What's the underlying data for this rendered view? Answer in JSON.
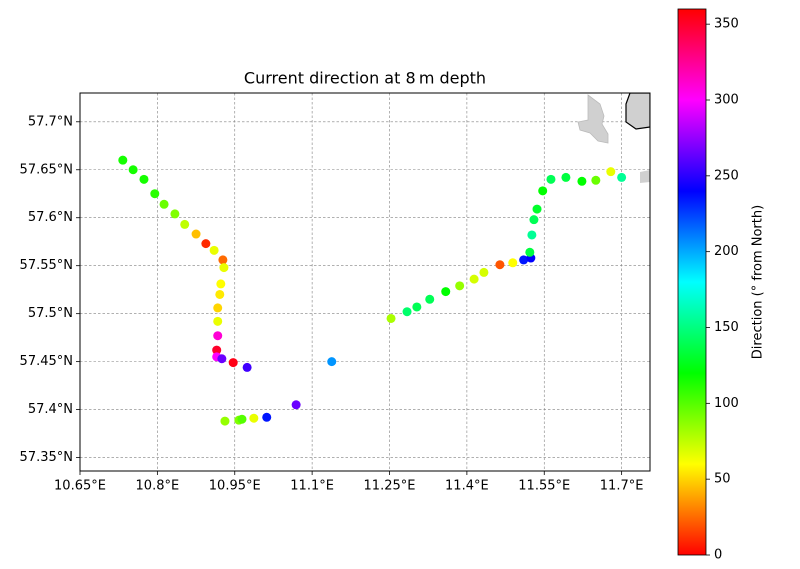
{
  "chart_data": {
    "type": "scatter",
    "title": "Current direction at 8 m depth",
    "x": [
      10.733,
      10.753,
      10.774,
      10.795,
      10.813,
      10.834,
      10.853,
      10.875,
      10.894,
      10.91,
      10.927,
      10.929,
      10.923,
      10.921,
      10.917,
      10.917,
      10.917,
      10.915,
      10.915,
      10.925,
      10.947,
      10.974,
      11.138,
      11.069,
      11.012,
      10.987,
      10.958,
      10.964,
      10.931,
      11.253,
      11.284,
      11.303,
      11.328,
      11.359,
      11.386,
      11.414,
      11.433,
      11.464,
      11.489,
      11.51,
      11.524,
      11.522,
      11.526,
      11.53,
      11.536,
      11.547,
      11.563,
      11.592,
      11.623,
      11.65,
      11.679,
      11.7
    ],
    "y": [
      57.66,
      57.65,
      57.64,
      57.625,
      57.614,
      57.604,
      57.593,
      57.583,
      57.573,
      57.566,
      57.556,
      57.548,
      57.531,
      57.52,
      57.506,
      57.492,
      57.477,
      57.462,
      57.455,
      57.453,
      57.449,
      57.444,
      57.45,
      57.405,
      57.392,
      57.391,
      57.389,
      57.39,
      57.388,
      57.495,
      57.502,
      57.507,
      57.515,
      57.523,
      57.529,
      57.536,
      57.543,
      57.551,
      57.553,
      57.556,
      57.558,
      57.564,
      57.582,
      57.598,
      57.609,
      57.628,
      57.64,
      57.642,
      57.638,
      57.639,
      57.648,
      57.642
    ],
    "values": [
      115,
      115,
      115,
      110,
      95,
      90,
      75,
      45,
      10,
      65,
      25,
      65,
      60,
      55,
      50,
      65,
      310,
      350,
      300,
      265,
      355,
      255,
      205,
      265,
      235,
      65,
      90,
      100,
      85,
      80,
      145,
      140,
      140,
      120,
      85,
      70,
      70,
      20,
      60,
      235,
      240,
      135,
      155,
      140,
      130,
      120,
      140,
      135,
      120,
      95,
      65,
      155
    ],
    "colormap": "hsv",
    "clim": [
      0,
      360
    ],
    "colorbar_ticks": [
      0,
      50,
      100,
      150,
      200,
      250,
      300,
      350
    ],
    "colorbar_label": "Direction (° from North)",
    "xlim": [
      10.65,
      11.755
    ],
    "ylim": [
      57.336,
      57.73
    ],
    "xticks": [
      {
        "value": 10.65,
        "label": "10.65°E"
      },
      {
        "value": 10.8,
        "label": "10.8°E"
      },
      {
        "value": 10.95,
        "label": "10.95°E"
      },
      {
        "value": 11.1,
        "label": "11.1°E"
      },
      {
        "value": 11.25,
        "label": "11.25°E"
      },
      {
        "value": 11.4,
        "label": "11.4°E"
      },
      {
        "value": 11.55,
        "label": "11.55°E"
      },
      {
        "value": 11.7,
        "label": "11.7°E"
      }
    ],
    "yticks": [
      {
        "value": 57.35,
        "label": "57.35°N"
      },
      {
        "value": 57.4,
        "label": "57.4°N"
      },
      {
        "value": 57.45,
        "label": "57.45°N"
      },
      {
        "value": 57.5,
        "label": "57.5°N"
      },
      {
        "value": 57.55,
        "label": "57.55°N"
      },
      {
        "value": 57.6,
        "label": "57.6°N"
      },
      {
        "value": 57.65,
        "label": "57.65°N"
      },
      {
        "value": 57.7,
        "label": "57.7°N"
      }
    ],
    "grid": true
  }
}
